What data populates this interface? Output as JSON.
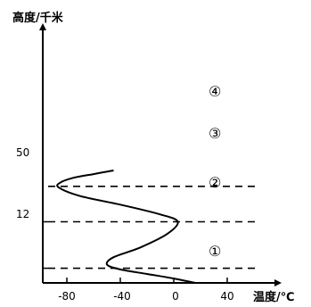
{
  "chart_data": {
    "type": "line",
    "ylabel": "高度/千米",
    "xlabel": "温度/℃",
    "x_ticks": [
      "-80",
      "-40",
      "0",
      "40"
    ],
    "y_ticks": [
      "12",
      "50"
    ],
    "xlim": [
      -100,
      55
    ],
    "series": [
      {
        "x": [
          16,
          0,
          -20,
          -40,
          -50,
          -45,
          -25,
          -5,
          3,
          -10,
          -40,
          -70,
          -86,
          -85,
          -75,
          -60,
          -45
        ],
        "y": [
          0,
          3.6,
          7.3,
          11,
          15,
          21,
          29,
          40,
          50,
          56,
          64,
          71,
          78,
          82,
          86,
          89,
          92
        ]
      }
    ],
    "boundaries": [
      12,
      50,
      79
    ],
    "layers": [
      "①",
      "②",
      "③",
      "④"
    ]
  }
}
